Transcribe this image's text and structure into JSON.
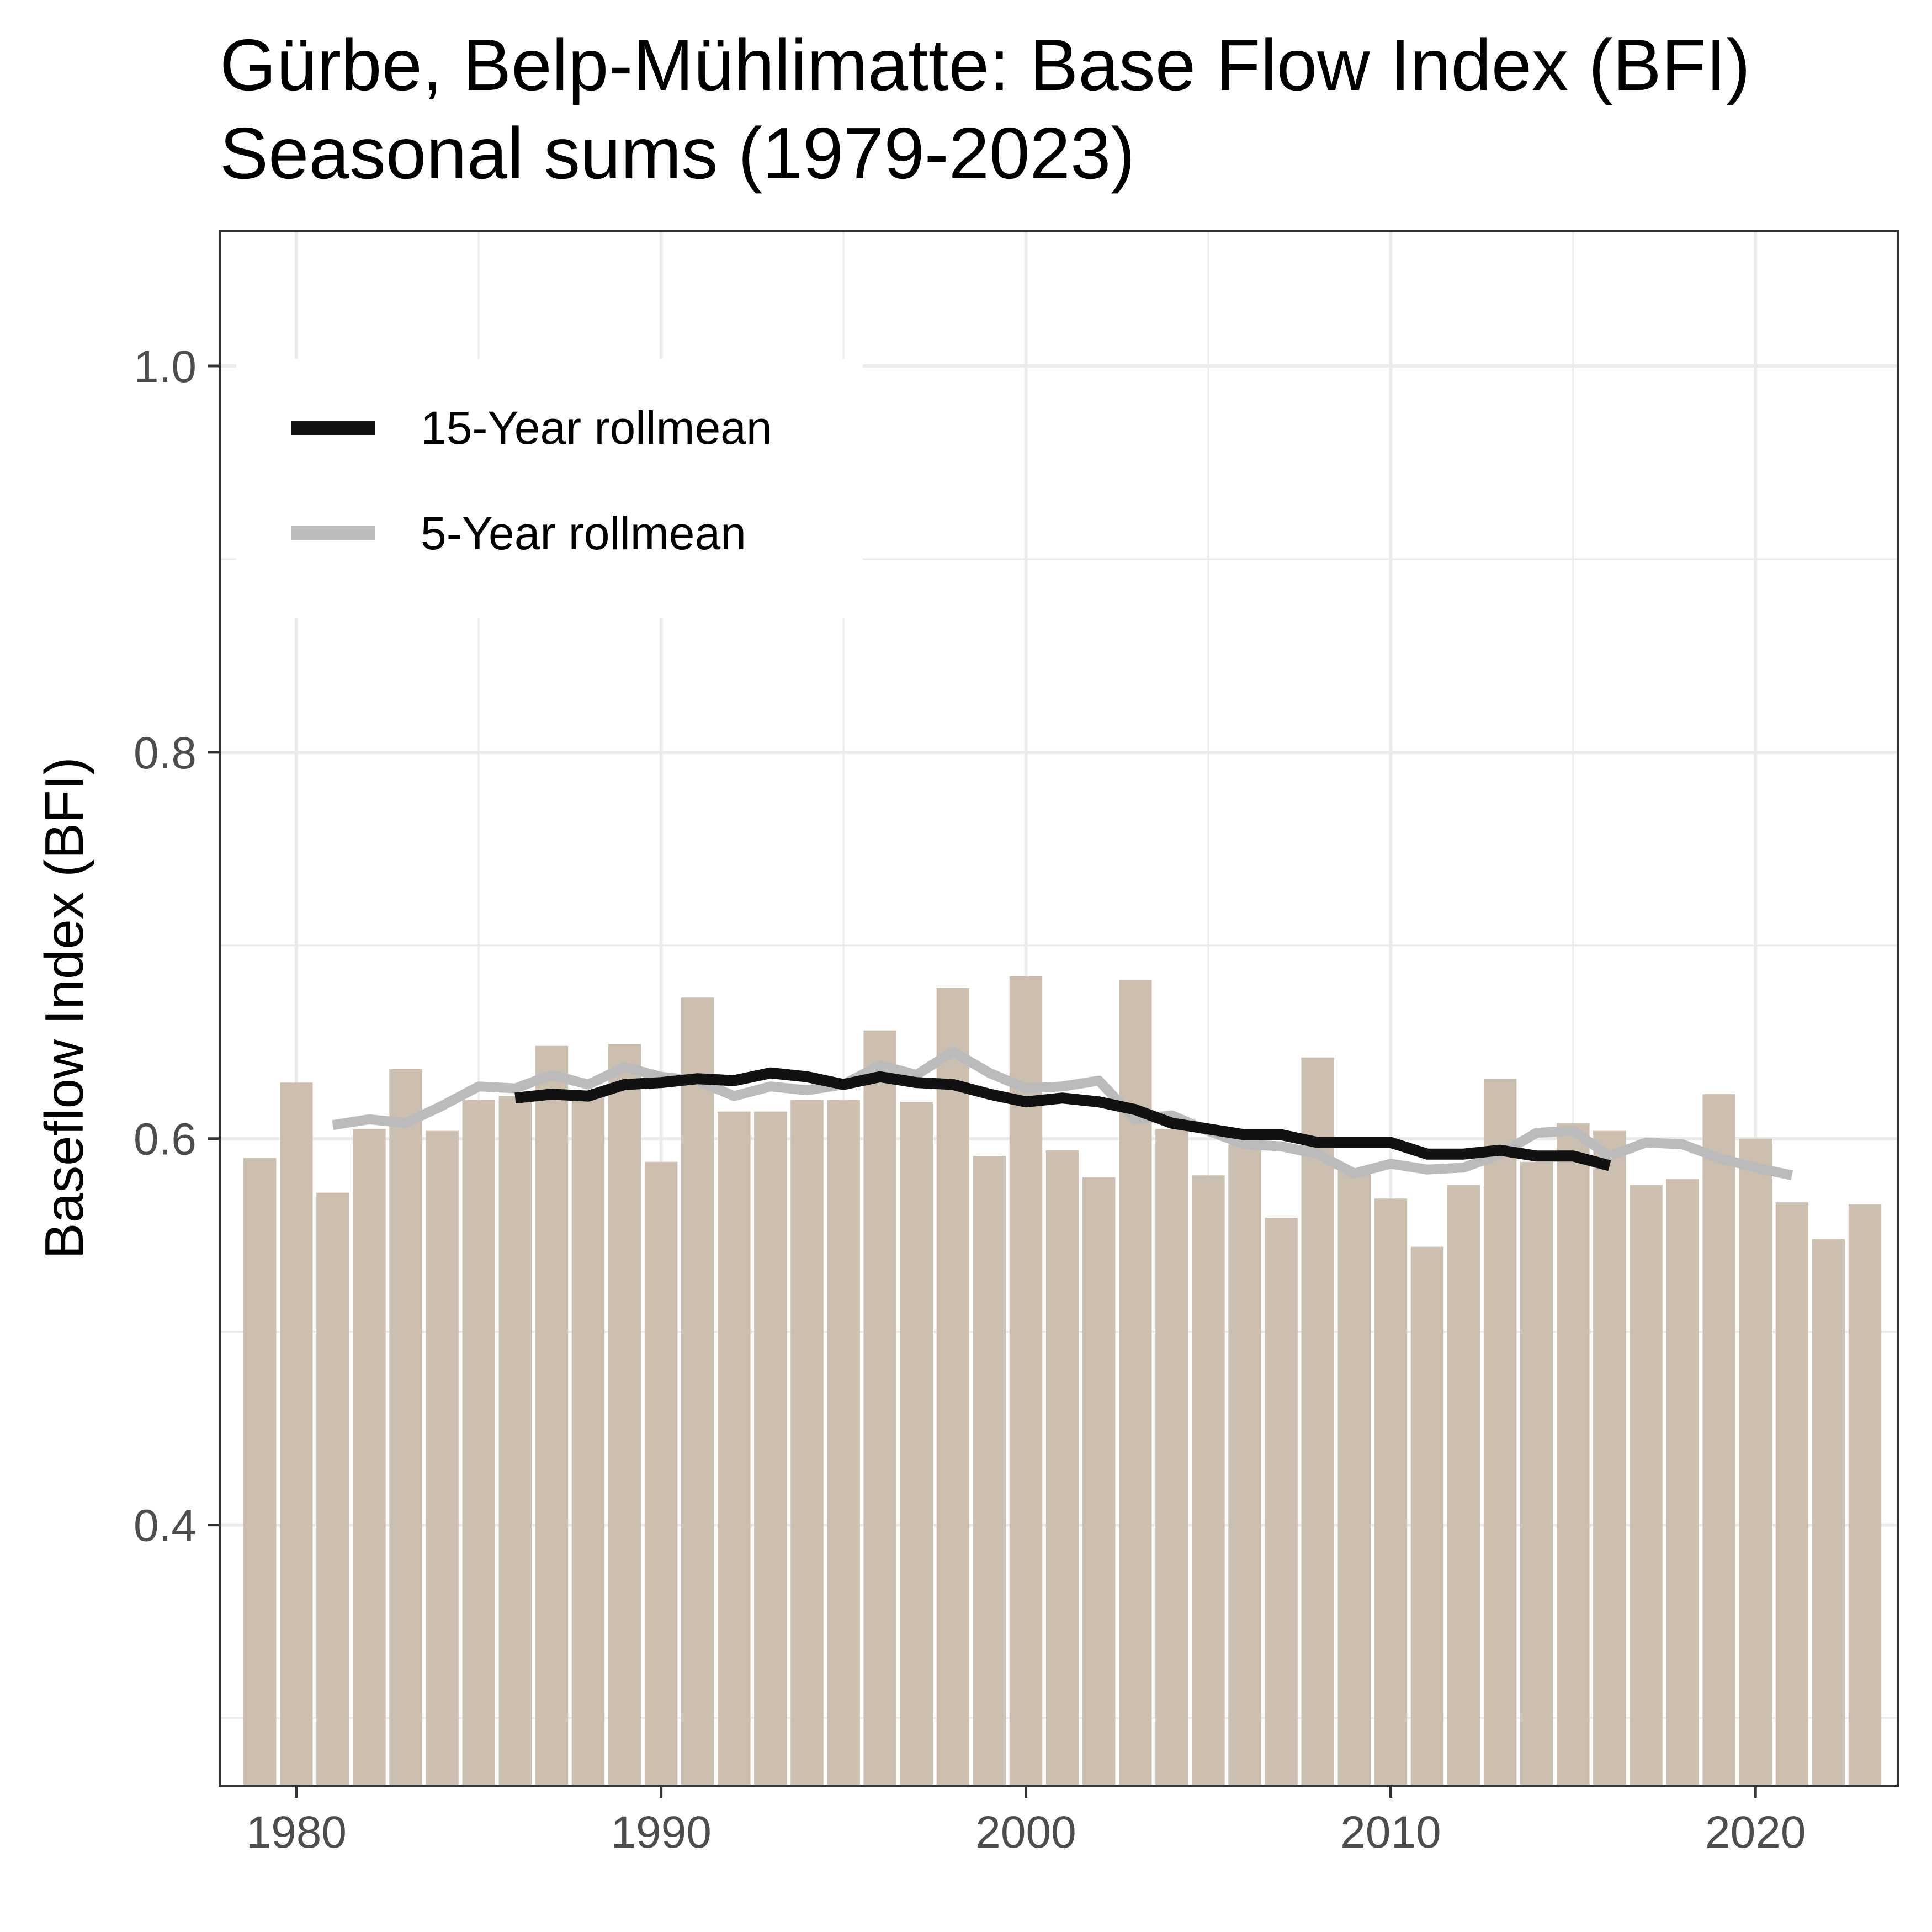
{
  "chart_data": {
    "type": "bar",
    "title": "Gürbe, Belp-Mühlimatte: Base Flow Index (BFI)",
    "subtitle": "Seasonal sums (1979-2023)",
    "xlabel": "",
    "ylabel": "Baseflow Index (BFI)",
    "xlim": [
      1977.9,
      2023.9
    ],
    "ylim": [
      0.265,
      1.07
    ],
    "x_ticks": [
      1980,
      1990,
      2000,
      2010,
      2020
    ],
    "x_tick_labels": [
      "1980",
      "1990",
      "2000",
      "2010",
      "2020"
    ],
    "y_ticks": [
      0.4,
      0.6,
      0.8,
      1.0
    ],
    "y_tick_labels": [
      "0.4",
      "0.6",
      "0.8",
      "1.0"
    ],
    "grid": true,
    "legend_position": "top-left",
    "bar_color": "#cdbfb0",
    "years": [
      1979,
      1980,
      1981,
      1982,
      1983,
      1984,
      1985,
      1986,
      1987,
      1988,
      1989,
      1990,
      1991,
      1992,
      1993,
      1994,
      1995,
      1996,
      1997,
      1998,
      1999,
      2000,
      2001,
      2002,
      2003,
      2004,
      2005,
      2006,
      2007,
      2008,
      2009,
      2010,
      2011,
      2012,
      2013,
      2014,
      2015,
      2016,
      2017,
      2018,
      2019,
      2020,
      2021,
      2022,
      2023
    ],
    "values": [
      0.59,
      0.629,
      0.572,
      0.605,
      0.636,
      0.604,
      0.62,
      0.622,
      0.648,
      0.622,
      0.649,
      0.588,
      0.673,
      0.614,
      0.614,
      0.62,
      0.62,
      0.656,
      0.619,
      0.678,
      0.591,
      0.684,
      0.594,
      0.58,
      0.682,
      0.605,
      0.581,
      0.597,
      0.559,
      0.642,
      0.584,
      0.569,
      0.544,
      0.576,
      0.631,
      0.588,
      0.608,
      0.604,
      0.576,
      0.579,
      0.623,
      0.6,
      0.567,
      0.548,
      0.566
    ],
    "series": [
      {
        "name": "15-Year rollmean",
        "color": "#111111",
        "x": [
          1986,
          1987,
          1988,
          1989,
          1990,
          1991,
          1992,
          1993,
          1994,
          1995,
          1996,
          1997,
          1998,
          1999,
          2000,
          2001,
          2002,
          2003,
          2004,
          2005,
          2006,
          2007,
          2008,
          2009,
          2010,
          2011,
          2012,
          2013,
          2014,
          2015,
          2016
        ],
        "y": [
          0.621,
          0.623,
          0.622,
          0.628,
          0.629,
          0.631,
          0.63,
          0.634,
          0.632,
          0.628,
          0.632,
          0.629,
          0.628,
          0.623,
          0.619,
          0.621,
          0.619,
          0.615,
          0.608,
          0.605,
          0.602,
          0.602,
          0.598,
          0.598,
          0.598,
          0.592,
          0.592,
          0.594,
          0.591,
          0.591,
          0.586
        ]
      },
      {
        "name": "5-Year rollmean",
        "color": "#bbbbbb",
        "x": [
          1981,
          1982,
          1983,
          1984,
          1985,
          1986,
          1987,
          1988,
          1989,
          1990,
          1991,
          1992,
          1993,
          1994,
          1995,
          1996,
          1997,
          1998,
          1999,
          2000,
          2001,
          2002,
          2003,
          2004,
          2005,
          2006,
          2007,
          2008,
          2009,
          2010,
          2011,
          2012,
          2013,
          2014,
          2015,
          2016,
          2017,
          2018,
          2019,
          2020,
          2021
        ],
        "y": [
          0.607,
          0.61,
          0.608,
          0.617,
          0.627,
          0.626,
          0.633,
          0.628,
          0.637,
          0.632,
          0.63,
          0.622,
          0.627,
          0.625,
          0.628,
          0.638,
          0.633,
          0.645,
          0.634,
          0.626,
          0.627,
          0.63,
          0.61,
          0.612,
          0.604,
          0.597,
          0.596,
          0.592,
          0.582,
          0.587,
          0.584,
          0.585,
          0.592,
          0.603,
          0.604,
          0.591,
          0.598,
          0.597,
          0.59,
          0.585,
          0.581
        ]
      }
    ]
  }
}
